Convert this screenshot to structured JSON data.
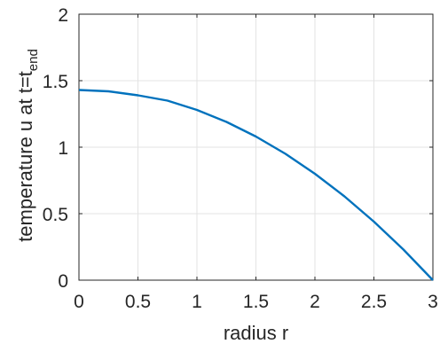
{
  "chart_data": {
    "type": "line",
    "xlabel": "radius r",
    "ylabel_main": "temperature u at t=t",
    "ylabel_sub": "end",
    "xlim": [
      0,
      3
    ],
    "ylim": [
      0,
      2
    ],
    "xticks": [
      0,
      0.5,
      1,
      1.5,
      2,
      2.5,
      3
    ],
    "yticks": [
      0,
      0.5,
      1,
      1.5,
      2
    ],
    "xtick_labels": [
      "0",
      "0.5",
      "1",
      "1.5",
      "2",
      "2.5",
      "3"
    ],
    "ytick_labels": [
      "0",
      "0.5",
      "1",
      "1.5",
      "2"
    ],
    "grid": true,
    "line_color": "#0072bd",
    "series": [
      {
        "x": [
          0,
          0.25,
          0.5,
          0.75,
          1,
          1.25,
          1.5,
          1.75,
          2,
          2.25,
          2.5,
          2.75,
          3
        ],
        "y": [
          1.43,
          1.42,
          1.39,
          1.35,
          1.28,
          1.19,
          1.08,
          0.95,
          0.8,
          0.63,
          0.44,
          0.23,
          0.0
        ]
      }
    ]
  }
}
